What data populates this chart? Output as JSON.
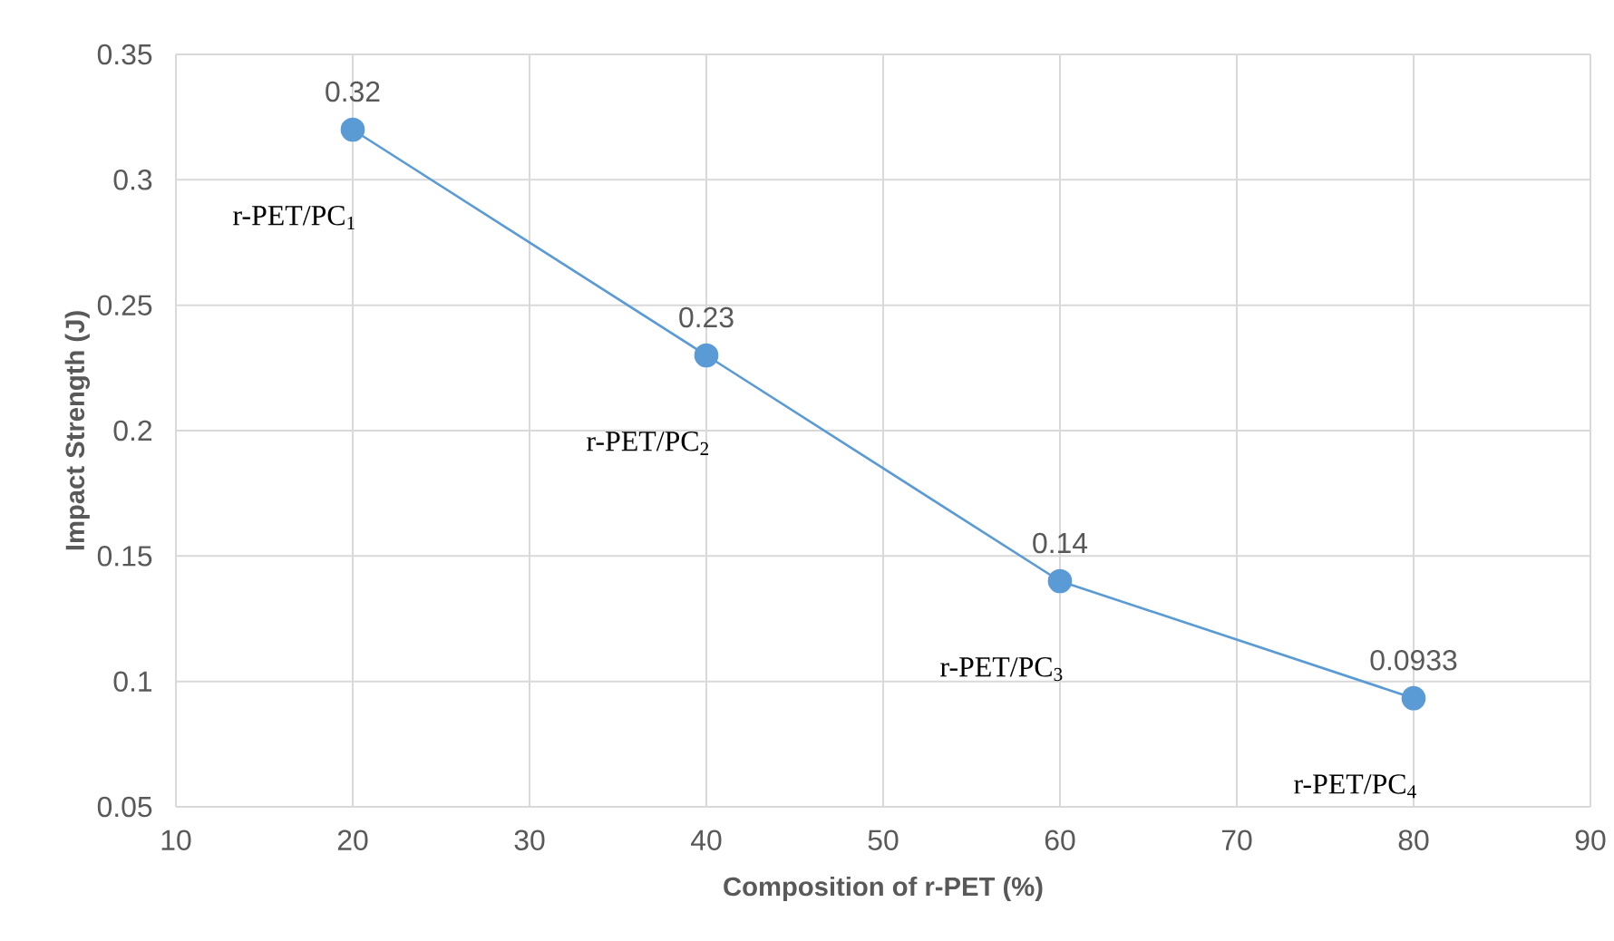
{
  "chart_data": {
    "type": "line",
    "xlabel": "Composition of r-PET (%)",
    "ylabel": "Impact Strength (J)",
    "x": [
      20,
      40,
      60,
      80
    ],
    "series": [
      {
        "color": "#5b9bd5",
        "values": [
          0.32,
          0.23,
          0.14,
          0.0933
        ]
      }
    ],
    "data_labels": true,
    "marker": "circle",
    "line_style": "solid",
    "grid": true,
    "xlim": [
      10,
      90
    ],
    "xticks": [
      10,
      20,
      30,
      40,
      50,
      60,
      70,
      80,
      90
    ],
    "ylim": [
      0.05,
      0.35
    ],
    "yticks": [
      0.05,
      0.1,
      0.15,
      0.2,
      0.25,
      0.3,
      0.35
    ],
    "annotations": [
      {
        "text": "r-PET/PC$_{1}$",
        "x": 20,
        "y": 0.32
      },
      {
        "text": "r-PET/PC$_{2}$",
        "x": 40,
        "y": 0.23
      },
      {
        "text": "r-PET/PC$_{3}$",
        "x": 60,
        "y": 0.14
      },
      {
        "text": "r-PET/PC$_{4}$",
        "x": 80,
        "y": 0.0933
      }
    ]
  }
}
